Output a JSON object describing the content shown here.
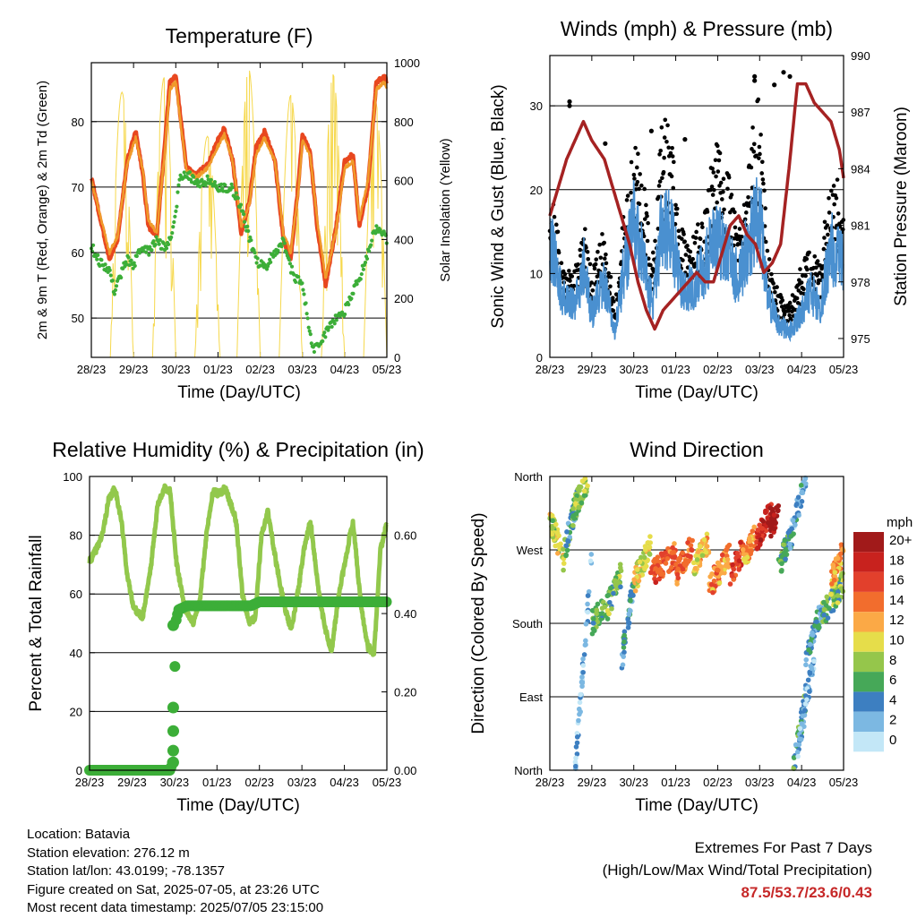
{
  "charts": {
    "temperature": {
      "type": "line",
      "title": "Temperature (F)",
      "xlabel": "Time (Day/UTC)",
      "ylabel": "2m & 9m T (Red, Orange) & 2m Td (Green)",
      "y2label": "Solar Insolation (Yellow)",
      "xticks": [
        "28/23",
        "29/23",
        "30/23",
        "01/23",
        "02/23",
        "03/23",
        "04/23",
        "05/23"
      ],
      "ylim": [
        44,
        89
      ],
      "yticks": [
        50,
        60,
        70,
        80
      ],
      "y2lim": [
        0,
        1000
      ],
      "y2ticks": [
        0,
        200,
        400,
        600,
        800,
        1000
      ],
      "series": [
        {
          "key": "t2m",
          "color": "#e8471f",
          "x": [
            0,
            0.18,
            0.43,
            0.62,
            0.85,
            1.05,
            1.22,
            1.35,
            1.55,
            1.72,
            1.86,
            2.0,
            2.25,
            2.5,
            2.77,
            2.98,
            3.15,
            3.35,
            3.55,
            3.75,
            3.9,
            4.1,
            4.35,
            4.55,
            4.72,
            4.9,
            5.0,
            5.18,
            5.35,
            5.55,
            5.8,
            6.0,
            6.2,
            6.35,
            6.55,
            6.75,
            6.95,
            7.0
          ],
          "y": [
            71.5,
            66,
            59,
            62,
            74,
            78.5,
            72,
            64,
            62.5,
            75,
            86,
            87,
            73,
            72,
            73.5,
            77,
            79,
            74,
            63,
            68,
            76,
            78.5,
            74,
            62,
            59,
            70,
            78,
            75.5,
            64,
            55,
            64,
            74,
            75,
            64,
            70,
            86,
            87,
            86
          ]
        },
        {
          "key": "t9m",
          "color": "#f09a2a",
          "x": [
            0,
            0.18,
            0.43,
            0.62,
            0.85,
            1.05,
            1.22,
            1.35,
            1.55,
            1.72,
            1.86,
            2.0,
            2.25,
            2.5,
            2.77,
            2.98,
            3.15,
            3.35,
            3.55,
            3.75,
            3.9,
            4.1,
            4.35,
            4.55,
            4.72,
            4.9,
            5.0,
            5.18,
            5.35,
            5.55,
            5.8,
            6.0,
            6.2,
            6.35,
            6.55,
            6.75,
            6.95,
            7.0
          ],
          "y": [
            71,
            66.5,
            60,
            62.5,
            73.5,
            77.5,
            72.5,
            65,
            63,
            74,
            85,
            86,
            72.5,
            71.5,
            73,
            76,
            78,
            74,
            64,
            67.5,
            75,
            77.5,
            74,
            63,
            60,
            69,
            77,
            75,
            65,
            56,
            63.5,
            73,
            74,
            65,
            71,
            85,
            86,
            85
          ]
        },
        {
          "key": "td2m",
          "color": "#3cae38",
          "dots": true,
          "x": [
            0,
            0.2,
            0.42,
            0.55,
            0.65,
            0.85,
            1.0,
            1.2,
            1.35,
            1.55,
            1.75,
            1.95,
            2.1,
            2.3,
            2.5,
            2.75,
            3.0,
            3.3,
            3.55,
            3.75,
            3.95,
            4.15,
            4.35,
            4.55,
            4.7,
            4.85,
            5.0,
            5.1,
            5.25,
            5.45,
            5.6,
            5.8,
            6.0,
            6.2,
            6.35,
            6.55,
            6.75,
            6.9,
            7.0
          ],
          "y": [
            61,
            58.5,
            57.5,
            54,
            56,
            59,
            58,
            61,
            60,
            62,
            60.5,
            64,
            71.5,
            72,
            70.5,
            71,
            70,
            70,
            67,
            62,
            58.5,
            58,
            60,
            62,
            58,
            56,
            55,
            51,
            45,
            46.5,
            48.5,
            50,
            51,
            54,
            56,
            60,
            64,
            63,
            62
          ]
        }
      ],
      "insolation": {
        "color": "#f6d84c",
        "days": [
          {
            "start": 0.45,
            "peak": 0.75,
            "end": 1.0,
            "max": 900
          },
          {
            "start": 1.45,
            "peak": 1.72,
            "end": 2.0,
            "max": 950
          },
          {
            "start": 2.45,
            "peak": 2.8,
            "end": 3.05,
            "max": 750
          },
          {
            "start": 3.45,
            "peak": 3.72,
            "end": 4.0,
            "max": 980
          },
          {
            "start": 4.45,
            "peak": 4.7,
            "end": 5.0,
            "max": 890
          },
          {
            "start": 5.45,
            "peak": 5.72,
            "end": 6.0,
            "max": 960
          },
          {
            "start": 6.45,
            "peak": 6.75,
            "end": 7.0,
            "max": 870
          }
        ]
      }
    },
    "winds": {
      "type": "scatter",
      "title": "Winds (mph) & Pressure (mb)",
      "xlabel": "Time (Day/UTC)",
      "ylabel": "Sonic Wind & Gust (Blue, Black)",
      "y2label": "Station Pressure (Maroon)",
      "xticks": [
        "28/23",
        "29/23",
        "30/23",
        "01/23",
        "02/23",
        "03/23",
        "04/23",
        "05/23"
      ],
      "ylim": [
        0,
        36
      ],
      "yticks": [
        0,
        10,
        20,
        30
      ],
      "y2lim": [
        974,
        990
      ],
      "y2ticks": [
        975,
        978,
        981,
        984,
        987,
        990
      ],
      "wind_color": "#4a90d0",
      "gust_color": "#000000",
      "pressure_color": "#a52222",
      "wind": {
        "x": [
          0,
          0.3,
          0.6,
          0.8,
          1.0,
          1.3,
          1.55,
          1.75,
          2.0,
          2.2,
          2.45,
          2.65,
          2.85,
          3.1,
          3.4,
          3.7,
          3.95,
          4.25,
          4.5,
          4.75,
          5.0,
          5.2,
          5.45,
          5.7,
          5.95,
          6.2,
          6.45,
          6.7,
          7.0
        ],
        "y": [
          14,
          7,
          6,
          11,
          5,
          9,
          3,
          10,
          16,
          12,
          6,
          15,
          16,
          9,
          8,
          11,
          15,
          12,
          9,
          14,
          17,
          7,
          4,
          3,
          5,
          8,
          6,
          13,
          11
        ]
      },
      "gust": {
        "x": [
          0,
          0.3,
          0.6,
          0.8,
          1.0,
          1.3,
          1.55,
          1.75,
          2.0,
          2.2,
          2.45,
          2.65,
          2.85,
          3.1,
          3.4,
          3.7,
          3.95,
          4.25,
          4.5,
          4.75,
          5.0,
          5.2,
          5.45,
          5.7,
          5.95,
          6.2,
          6.45,
          6.7,
          7.0
        ],
        "y": [
          17,
          9,
          8,
          13,
          8,
          12,
          5,
          13,
          20,
          18,
          9,
          21,
          23,
          12,
          11,
          14,
          20,
          17,
          12,
          19,
          25,
          10,
          6,
          5,
          8,
          11,
          9,
          18,
          15
        ]
      },
      "gust_peaks": [
        {
          "x": 0.47,
          "y": 30.5
        },
        {
          "x": 0.47,
          "y": 30
        },
        {
          "x": 1.32,
          "y": 25.5
        },
        {
          "x": 2.42,
          "y": 27
        },
        {
          "x": 3.22,
          "y": 26
        },
        {
          "x": 4.88,
          "y": 33.5
        },
        {
          "x": 4.88,
          "y": 33
        },
        {
          "x": 5.57,
          "y": 34
        },
        {
          "x": 5.72,
          "y": 33.5
        },
        {
          "x": 5.35,
          "y": 32.5
        }
      ],
      "pressure": {
        "x": [
          0,
          0.2,
          0.4,
          0.6,
          0.8,
          1.0,
          1.15,
          1.3,
          1.5,
          1.7,
          1.9,
          2.1,
          2.3,
          2.5,
          2.7,
          2.9,
          3.1,
          3.3,
          3.5,
          3.7,
          3.9,
          4.1,
          4.3,
          4.5,
          4.7,
          4.9,
          5.1,
          5.3,
          5.5,
          5.7,
          5.9,
          6.1,
          6.3,
          6.5,
          6.7,
          6.9,
          7.0
        ],
        "y": [
          981.5,
          983,
          984.5,
          985.5,
          986.5,
          985.5,
          985,
          984.5,
          983,
          981.5,
          980,
          978,
          976.5,
          975.5,
          976.5,
          977,
          977.5,
          978,
          978.5,
          978,
          978,
          979.5,
          981,
          981.5,
          980.5,
          980,
          978.5,
          979,
          980,
          984,
          988.5,
          988.5,
          987.5,
          987,
          986.5,
          985,
          983.5
        ]
      }
    },
    "humidity": {
      "type": "line",
      "title": "Relative Humidity (%) & Precipitation (in)",
      "xlabel": "Time (Day/UTC)",
      "ylabel": "Percent & Total Rainfall",
      "xticks": [
        "28/23",
        "29/23",
        "30/23",
        "01/23",
        "02/23",
        "03/23",
        "04/23",
        "05/23"
      ],
      "ylim": [
        0,
        100
      ],
      "yticks": [
        0,
        20,
        40,
        60,
        80,
        100
      ],
      "y2lim": [
        0,
        0.75
      ],
      "y2ticks": [
        "0.00",
        "0.20",
        "0.40",
        "0.60"
      ],
      "rh_color": "#92c84c",
      "precip_color": "#3cae38",
      "rh": {
        "x": [
          0,
          0.15,
          0.3,
          0.45,
          0.6,
          0.75,
          0.9,
          1.05,
          1.25,
          1.45,
          1.6,
          1.75,
          1.9,
          2.05,
          2.25,
          2.45,
          2.6,
          2.75,
          2.9,
          3.05,
          3.2,
          3.45,
          3.6,
          3.75,
          3.9,
          4.05,
          4.2,
          4.4,
          4.6,
          4.75,
          4.9,
          5.05,
          5.2,
          5.4,
          5.55,
          5.7,
          5.85,
          6.0,
          6.2,
          6.4,
          6.55,
          6.7,
          6.85,
          7.0
        ],
        "y": [
          71,
          75,
          80,
          92,
          96,
          85,
          65,
          55,
          52,
          70,
          90,
          96,
          95,
          70,
          55,
          50,
          58,
          80,
          95,
          94,
          96,
          85,
          60,
          50,
          52,
          80,
          88,
          70,
          55,
          48,
          60,
          75,
          85,
          60,
          48,
          40,
          58,
          70,
          85,
          55,
          42,
          40,
          75,
          84
        ]
      },
      "precip": {
        "x": [
          0,
          0.5,
          1.0,
          1.5,
          1.9,
          1.95,
          1.96,
          1.98,
          2.0,
          2.02,
          2.05,
          2.1,
          2.3,
          2.6,
          3.0,
          3.5,
          3.8,
          4.0,
          4.5,
          5.0,
          5.5,
          6.0,
          6.5,
          7.0
        ],
        "y": [
          0,
          0,
          0,
          0,
          0,
          0.02,
          0.05,
          0.1,
          0.16,
          0.37,
          0.39,
          0.41,
          0.42,
          0.42,
          0.42,
          0.42,
          0.42,
          0.43,
          0.43,
          0.43,
          0.43,
          0.43,
          0.43,
          0.43
        ]
      }
    },
    "direction": {
      "type": "scatter",
      "title": "Wind Direction",
      "xlabel": "Time (Day/UTC)",
      "ylabel": "Direction (Colored By Speed)",
      "xticks": [
        "28/23",
        "29/23",
        "30/23",
        "01/23",
        "02/23",
        "03/23",
        "04/23",
        "05/23"
      ],
      "ylim": [
        0,
        360
      ],
      "yticks": [
        {
          "value": 0,
          "label": "North"
        },
        {
          "value": 90,
          "label": "East"
        },
        {
          "value": 180,
          "label": "South"
        },
        {
          "value": 270,
          "label": "West"
        },
        {
          "value": 360,
          "label": "North"
        }
      ],
      "legend": {
        "title": "mph",
        "levels": [
          {
            "label": "20+",
            "color": "#a11a1a"
          },
          {
            "label": "18",
            "color": "#c8221e"
          },
          {
            "label": "16",
            "color": "#e2402c"
          },
          {
            "label": "14",
            "color": "#f26d2d"
          },
          {
            "label": "12",
            "color": "#fba946"
          },
          {
            "label": "10",
            "color": "#e6dd4a"
          },
          {
            "label": "8",
            "color": "#95c64b"
          },
          {
            "label": "6",
            "color": "#46a858"
          },
          {
            "label": "4",
            "color": "#3d7fc1"
          },
          {
            "label": "2",
            "color": "#7cb8e2"
          },
          {
            "label": "0",
            "color": "#c3e7f7"
          }
        ]
      },
      "segments": [
        {
          "x0": 0,
          "x1": 0.35,
          "y0": 310,
          "y1": 255,
          "speed": 9
        },
        {
          "x0": 0.35,
          "x1": 0.65,
          "y0": 270,
          "y1": 330,
          "speed": 5
        },
        {
          "x0": 0.55,
          "x1": 0.9,
          "y0": 320,
          "y1": 350,
          "speed": 8
        },
        {
          "x0": 0.6,
          "x1": 1.0,
          "y0": 0,
          "y1": 260,
          "speed": 2
        },
        {
          "x0": 1.0,
          "x1": 1.3,
          "y0": 180,
          "y1": 200,
          "speed": 6
        },
        {
          "x0": 1.3,
          "x1": 1.7,
          "y0": 190,
          "y1": 240,
          "speed": 7
        },
        {
          "x0": 1.7,
          "x1": 2.0,
          "y0": 130,
          "y1": 230,
          "speed": 4
        },
        {
          "x0": 2.0,
          "x1": 2.4,
          "y0": 230,
          "y1": 275,
          "speed": 10
        },
        {
          "x0": 2.4,
          "x1": 3.0,
          "y0": 240,
          "y1": 265,
          "speed": 15
        },
        {
          "x0": 3.0,
          "x1": 3.4,
          "y0": 240,
          "y1": 275,
          "speed": 14
        },
        {
          "x0": 3.4,
          "x1": 3.8,
          "y0": 250,
          "y1": 280,
          "speed": 11
        },
        {
          "x0": 3.8,
          "x1": 4.3,
          "y0": 225,
          "y1": 265,
          "speed": 13
        },
        {
          "x0": 4.3,
          "x1": 4.6,
          "y0": 240,
          "y1": 270,
          "speed": 16
        },
        {
          "x0": 4.6,
          "x1": 4.9,
          "y0": 255,
          "y1": 290,
          "speed": 12
        },
        {
          "x0": 4.9,
          "x1": 5.3,
          "y0": 280,
          "y1": 320,
          "speed": 17
        },
        {
          "x0": 5.2,
          "x1": 5.45,
          "y0": 290,
          "y1": 320,
          "speed": 21
        },
        {
          "x0": 5.45,
          "x1": 5.8,
          "y0": 250,
          "y1": 290,
          "speed": 6
        },
        {
          "x0": 5.7,
          "x1": 6.1,
          "y0": 280,
          "y1": 360,
          "speed": 3
        },
        {
          "x0": 5.8,
          "x1": 6.1,
          "y0": 0,
          "y1": 90,
          "speed": 5
        },
        {
          "x0": 5.9,
          "x1": 6.3,
          "y0": 20,
          "y1": 140,
          "speed": 2
        },
        {
          "x0": 6.1,
          "x1": 6.5,
          "y0": 140,
          "y1": 200,
          "speed": 4
        },
        {
          "x0": 6.5,
          "x1": 7.0,
          "y0": 190,
          "y1": 230,
          "speed": 7
        },
        {
          "x0": 6.7,
          "x1": 7.0,
          "y0": 230,
          "y1": 270,
          "speed": 12
        }
      ]
    }
  },
  "footer": {
    "location": "Location: Batavia",
    "elevation": "Station elevation: 276.12 m",
    "latlon": "Station lat/lon: 43.0199; -78.1357",
    "created": "Figure created on Sat, 2025-07-05, at 23:26 UTC",
    "recent": "Most recent data timestamp: 2025/07/05 23:15:00"
  },
  "extremes": {
    "title": "Extremes For Past 7 Days",
    "subtitle": "(High/Low/Max Wind/Total Precipitation)",
    "values": "87.5/53.7/23.6/0.43"
  }
}
